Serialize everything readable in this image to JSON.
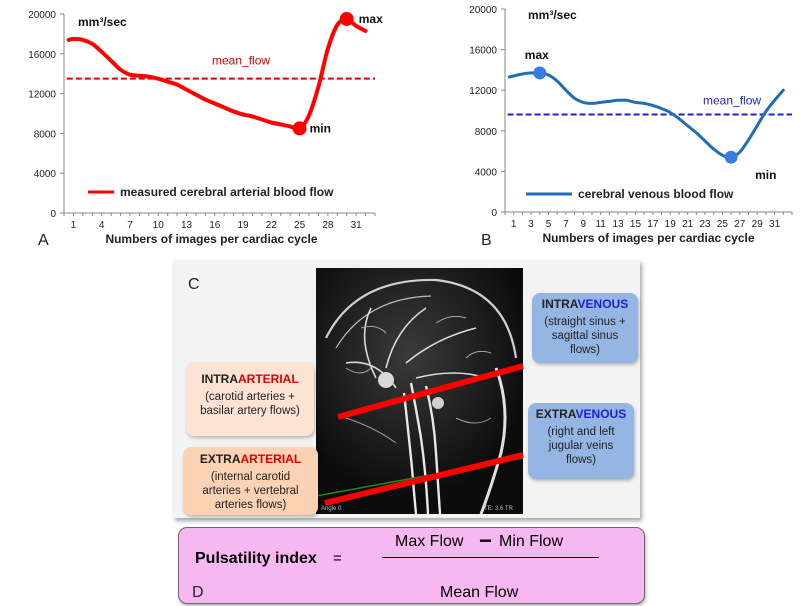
{
  "chart_data": [
    {
      "panel": "A",
      "type": "line",
      "unit": "mm³/sec",
      "xlabel": "Numbers of images per cardiac cycle",
      "ylabel": "",
      "x_ticks": [
        1,
        4,
        7,
        10,
        13,
        16,
        19,
        22,
        25,
        28,
        31
      ],
      "y_ticks": [
        0,
        4000,
        8000,
        12000,
        16000,
        20000
      ],
      "xlim": [
        0,
        33
      ],
      "ylim": [
        0,
        20000
      ],
      "series": [
        {
          "name": "measured cerebral arterial blood flow",
          "color": "#ff0000",
          "x": [
            0.5,
            1,
            2,
            3,
            4,
            5,
            6,
            7,
            8,
            9,
            10,
            11,
            12,
            13,
            14,
            15,
            16,
            17,
            18,
            19,
            20,
            21,
            22,
            23,
            24,
            25,
            26,
            27,
            28,
            29,
            30,
            31,
            32
          ],
          "y": [
            17400,
            17500,
            17400,
            17000,
            16200,
            15300,
            14400,
            13900,
            13800,
            13700,
            13500,
            13200,
            12900,
            12400,
            11900,
            11400,
            11000,
            10600,
            10200,
            9900,
            9700,
            9400,
            9100,
            8900,
            8700,
            8500,
            9800,
            12700,
            16500,
            18900,
            19500,
            18800,
            18300
          ]
        }
      ],
      "reference_line": {
        "label": "mean_flow",
        "value": 13500,
        "color": "#e00000"
      },
      "markers": [
        {
          "label": "min",
          "x": 25,
          "y": 8500
        },
        {
          "label": "max",
          "x": 30,
          "y": 19500
        }
      ]
    },
    {
      "panel": "B",
      "type": "line",
      "unit": "mm³/sec",
      "xlabel": "Numbers of images per cardiac cycle",
      "ylabel": "",
      "x_ticks": [
        1,
        3,
        5,
        7,
        9,
        11,
        13,
        15,
        17,
        19,
        21,
        23,
        25,
        27,
        29,
        31
      ],
      "y_ticks": [
        0,
        4000,
        8000,
        12000,
        16000,
        20000
      ],
      "xlim": [
        0,
        33
      ],
      "ylim": [
        0,
        20000
      ],
      "series": [
        {
          "name": "cerebral venous blood flow",
          "color": "#1f6eb5",
          "x": [
            0.5,
            2,
            3,
            4,
            5,
            6,
            7,
            8,
            9,
            10,
            11,
            12,
            13,
            14,
            15,
            16,
            17,
            18,
            19,
            20,
            21,
            22,
            23,
            24,
            25,
            26,
            27,
            28,
            29,
            30,
            31,
            32
          ],
          "y": [
            13300,
            13600,
            13700,
            13700,
            13500,
            12900,
            12000,
            11200,
            10800,
            10700,
            10800,
            10900,
            11000,
            11000,
            10800,
            10700,
            10500,
            10200,
            9800,
            9200,
            8500,
            7800,
            7000,
            6200,
            5600,
            5400,
            5900,
            7100,
            8500,
            9900,
            11000,
            12000
          ]
        }
      ],
      "reference_line": {
        "label": "mean_flow",
        "value": 9600,
        "color": "#1f1fd0"
      },
      "markers": [
        {
          "label": "max",
          "x": 4,
          "y": 13700
        },
        {
          "label": "min",
          "x": 26,
          "y": 5400
        }
      ]
    }
  ],
  "panels": {
    "a": "A",
    "b": "B",
    "c": "C",
    "d": "D"
  },
  "boxes": {
    "intra_arterial": {
      "pre": "INTRA",
      "word": "ARTERIAL",
      "desc": "(carotid arteries + basilar artery flows)",
      "color": "#fde3d3"
    },
    "extra_arterial": {
      "pre": "EXTRA",
      "word": "ARTERIAL",
      "desc": "(internal carotid arteries + vertebral arteries flows)",
      "color": "#fbd2b3"
    },
    "intra_venous": {
      "pre": "INTRA",
      "word": "VENOUS",
      "desc": "(straight sinus + sagittal sinus flows)",
      "color": "#95b6e3"
    },
    "extra_venous": {
      "pre": "EXTRA",
      "word": "VENOUS",
      "desc": "(right and left jugular veins flows)",
      "color": "#95b6e3"
    }
  },
  "mri_caption": {
    "left": "Angle 0",
    "right": "TE: 3.6 TR"
  },
  "formula": {
    "label": "Pulsatility index",
    "equals": "=",
    "numerator_left": "Max Flow",
    "minus": "−",
    "numerator_right": "Min Flow",
    "denominator": "Mean Flow"
  }
}
